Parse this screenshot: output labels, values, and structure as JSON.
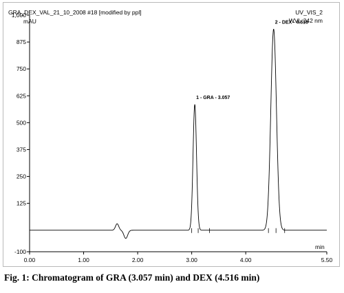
{
  "header": {
    "file_title": "GRA_DEX_VAL_21_10_2008 #18 [modified by ppl]",
    "detector": "UV_VIS_2",
    "wavelength": "WVL:242 nm"
  },
  "caption": {
    "label": "Fig. 1:",
    "text": "Chromatogram of GRA (3.057 min) and DEX (4.516 min)"
  },
  "chart_data": {
    "type": "line",
    "title": "",
    "xlabel": "min",
    "ylabel": "mAU",
    "xlim": [
      0,
      5.5
    ],
    "ylim": [
      -100,
      1000
    ],
    "x_ticks": [
      "0.00",
      "1.00",
      "2.00",
      "3.00",
      "4.00",
      "5.50"
    ],
    "x_tick_values": [
      0,
      1,
      2,
      3,
      4,
      5.5
    ],
    "y_ticks": [
      "-100",
      "125",
      "250",
      "375",
      "500",
      "625",
      "750",
      "875",
      "1,000"
    ],
    "y_tick_values": [
      -100,
      125,
      250,
      375,
      500,
      625,
      750,
      875,
      1000
    ],
    "grid": false,
    "baseline": 0,
    "series": [
      {
        "peaks": [
          {
            "label": "1 - GRA - 3.057",
            "rt": 3.057,
            "height": 585,
            "sigma": 0.032
          },
          {
            "label": "2 - DEX - 4.516",
            "rt": 4.516,
            "height": 935,
            "sigma": 0.052
          }
        ],
        "disturbance": [
          {
            "rt": 1.62,
            "height": 30,
            "sigma": 0.03
          },
          {
            "rt": 1.78,
            "height": -38,
            "sigma": 0.035
          }
        ]
      }
    ],
    "integration_marks": [
      3.0,
      3.12,
      3.33,
      4.42,
      4.56,
      4.72
    ]
  }
}
